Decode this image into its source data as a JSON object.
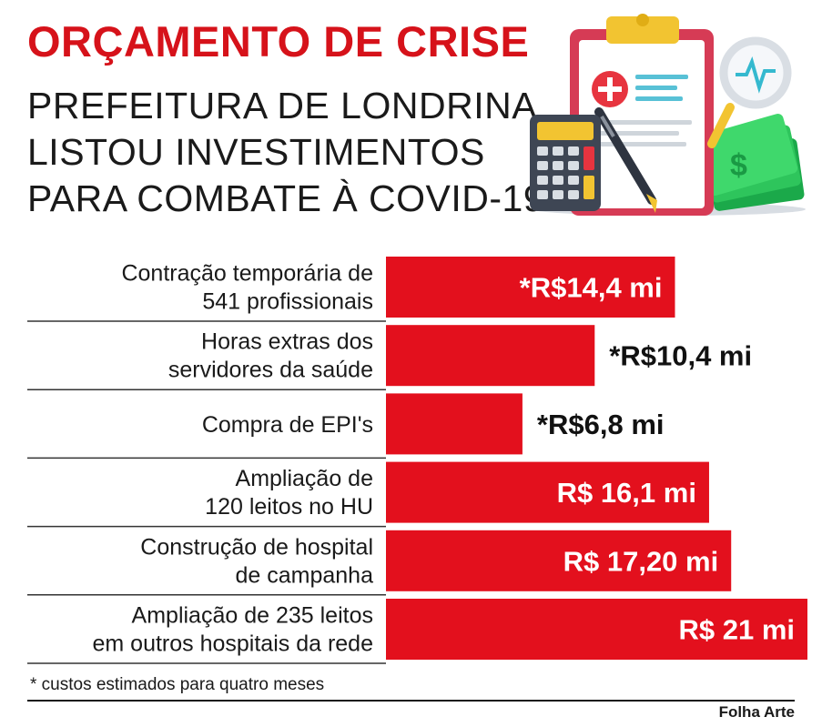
{
  "header": {
    "title": "ORÇAMENTO DE CRISE",
    "subtitle_lines": [
      "PREFEITURA DE LONDRINA",
      "LISTOU INVESTIMENTOS",
      "PARA COMBATE À COVID-19"
    ]
  },
  "illustration": {
    "icons": [
      "clipboard-icon",
      "calculator-icon",
      "pen-icon",
      "money-icon",
      "magnifier-icon",
      "medical-cross-icon",
      "heartbeat-icon"
    ]
  },
  "colors": {
    "bar": "#e3101d",
    "title": "#d6121a",
    "label_inside": "#ffffff",
    "label_outside": "#111111"
  },
  "chart_data": {
    "type": "bar",
    "orientation": "horizontal",
    "unit": "R$ milhões",
    "categories": [
      [
        "Contração temporária de",
        "541 profissionais"
      ],
      [
        "Horas extras dos",
        "servidores da saúde"
      ],
      [
        "Compra de EPI's"
      ],
      [
        "Ampliação de",
        "120 leitos no HU"
      ],
      [
        "Construção de hospital",
        "de campanha"
      ],
      [
        "Ampliação de 235 leitos",
        "em outros hospitais da rede"
      ]
    ],
    "values": [
      14.4,
      10.4,
      6.8,
      16.1,
      17.2,
      21
    ],
    "value_labels": [
      "*R$14,4 mi",
      "*R$10,4 mi",
      "*R$6,8 mi",
      "R$ 16,1 mi",
      "R$ 17,20 mi",
      "R$ 21 mi"
    ],
    "label_inside_bar": [
      true,
      false,
      false,
      true,
      true,
      true
    ],
    "xlim": [
      0,
      21
    ],
    "grid": false,
    "legend": "none"
  },
  "footer": {
    "footnote": "* custos estimados para quatro meses",
    "credit": "Folha Arte"
  }
}
